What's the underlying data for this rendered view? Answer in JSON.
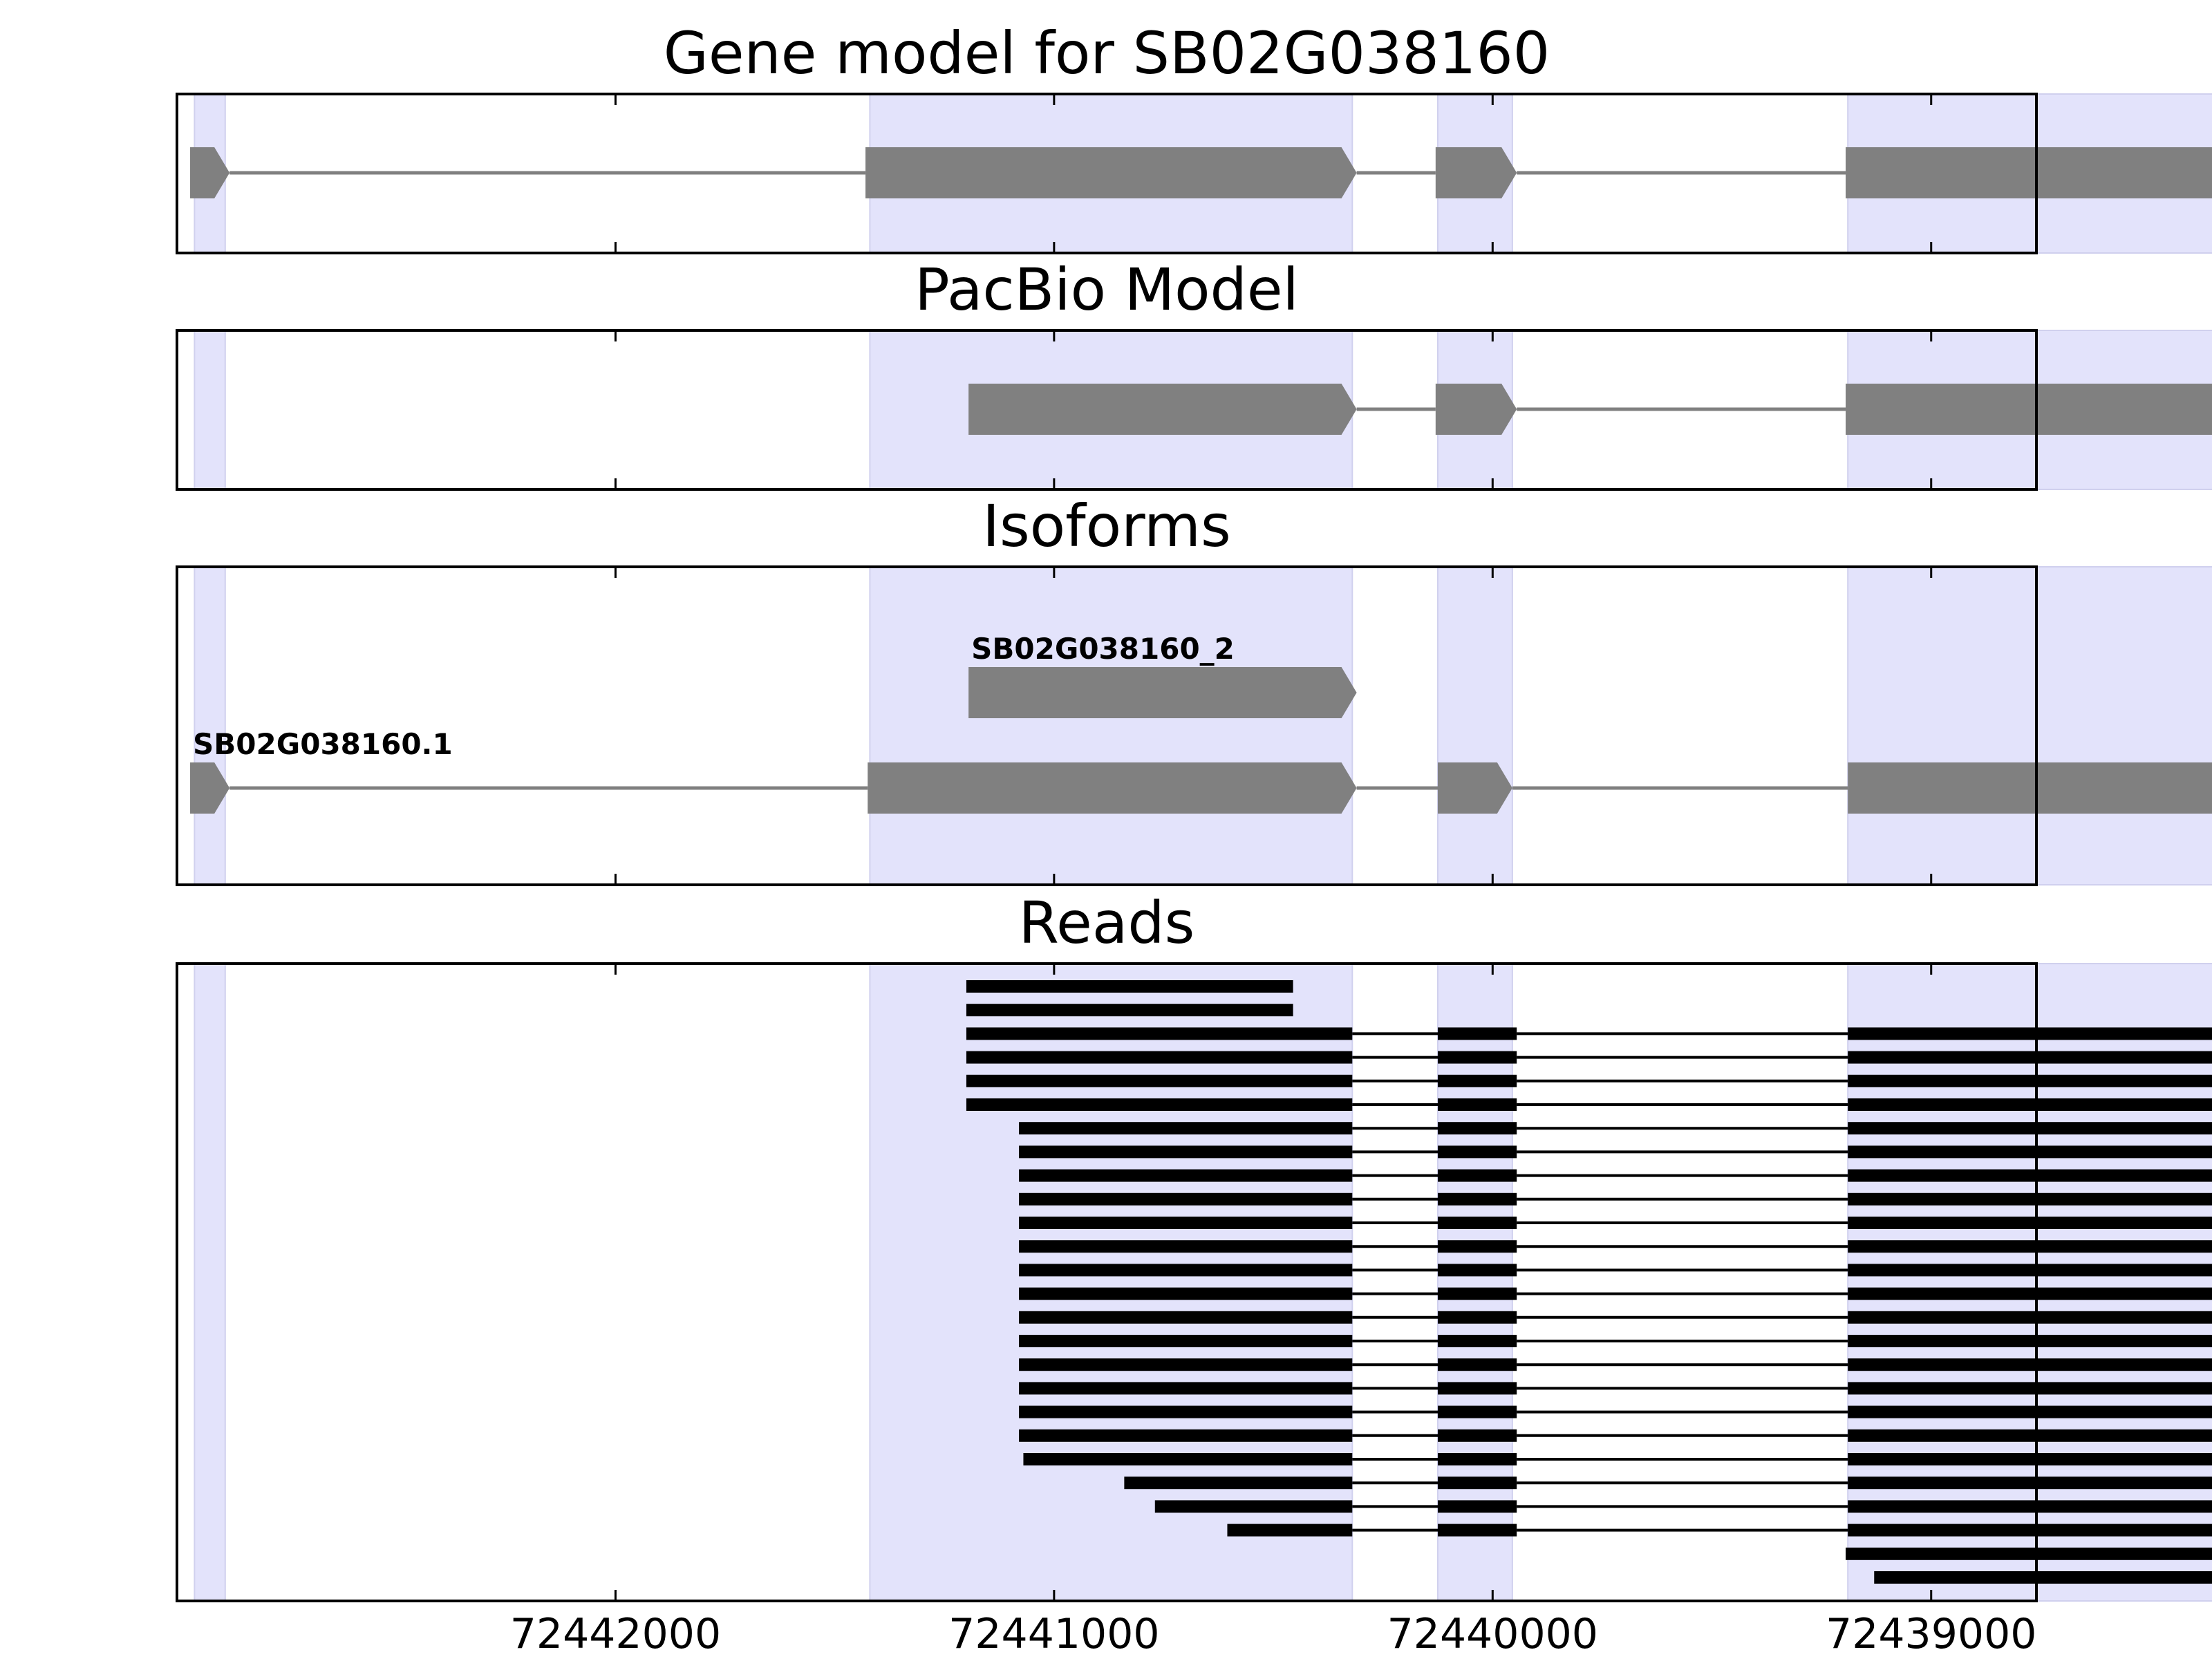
{
  "chart_data": {
    "type": "gene-structure",
    "xaxis": {
      "reversed": true,
      "xlim": [
        72443000,
        72438760
      ],
      "ticks": [
        72442000,
        72441000,
        72440000,
        72439000
      ],
      "tick_labels": [
        "72442000",
        "72441000",
        "72440000",
        "72439000"
      ]
    },
    "highlight_color": "#e3e3fb",
    "feature_color": "#808080",
    "read_color": "#000000",
    "exon_regions": [
      [
        72442960,
        72442890
      ],
      [
        72441420,
        72440320
      ],
      [
        72440125,
        72439955
      ],
      [
        72439190,
        72438320
      ]
    ],
    "panels": [
      {
        "title": "Gene model for SB02G038160",
        "kind": "gene",
        "tracks": [
          {
            "label": "",
            "exons": [
              [
                72442970,
                72442880
              ],
              [
                72441430,
                72440310
              ],
              [
                72440130,
                72439945
              ],
              [
                72439195,
                72438310
              ]
            ]
          }
        ]
      },
      {
        "title": "PacBio Model",
        "kind": "gene",
        "tracks": [
          {
            "label": "",
            "exons": [
              [
                72441195,
                72440310
              ],
              [
                72440130,
                72439945
              ],
              [
                72439195,
                72438240
              ]
            ]
          }
        ]
      },
      {
        "title": "Isoforms",
        "kind": "gene",
        "tracks": [
          {
            "label": "SB02G038160_2",
            "exons": [
              [
                72441195,
                72440310
              ]
            ]
          },
          {
            "label": "SB02G038160.1",
            "exons": [
              [
                72442970,
                72442880
              ],
              [
                72441425,
                72440310
              ],
              [
                72440125,
                72439955
              ],
              [
                72439190,
                72438240
              ]
            ]
          }
        ]
      },
      {
        "title": "Reads",
        "kind": "reads",
        "reads": [
          [
            [
              72441200,
              72440455
            ]
          ],
          [
            [
              72441200,
              72440455
            ]
          ],
          [
            [
              72441200,
              72440320
            ],
            [
              72440125,
              72439945
            ],
            [
              72439190,
              72438290
            ]
          ],
          [
            [
              72441200,
              72440320
            ],
            [
              72440125,
              72439945
            ],
            [
              72439190,
              72438290
            ]
          ],
          [
            [
              72441200,
              72440320
            ],
            [
              72440125,
              72439945
            ],
            [
              72439190,
              72438290
            ]
          ],
          [
            [
              72441200,
              72440320
            ],
            [
              72440125,
              72439945
            ],
            [
              72439190,
              72438280
            ]
          ],
          [
            [
              72441080,
              72440320
            ],
            [
              72440125,
              72439945
            ],
            [
              72439190,
              72438240
            ]
          ],
          [
            [
              72441080,
              72440320
            ],
            [
              72440125,
              72439945
            ],
            [
              72439190,
              72438240
            ]
          ],
          [
            [
              72441080,
              72440320
            ],
            [
              72440125,
              72439945
            ],
            [
              72439190,
              72438240
            ]
          ],
          [
            [
              72441080,
              72440320
            ],
            [
              72440125,
              72439945
            ],
            [
              72439190,
              72438240
            ]
          ],
          [
            [
              72441080,
              72440320
            ],
            [
              72440125,
              72439945
            ],
            [
              72439190,
              72438240
            ]
          ],
          [
            [
              72441080,
              72440320
            ],
            [
              72440125,
              72439945
            ],
            [
              72439190,
              72438240
            ]
          ],
          [
            [
              72441080,
              72440320
            ],
            [
              72440125,
              72439945
            ],
            [
              72439190,
              72438240
            ]
          ],
          [
            [
              72441080,
              72440320
            ],
            [
              72440125,
              72439945
            ],
            [
              72439190,
              72438240
            ]
          ],
          [
            [
              72441080,
              72440320
            ],
            [
              72440125,
              72439945
            ],
            [
              72439190,
              72438240
            ]
          ],
          [
            [
              72441080,
              72440320
            ],
            [
              72440125,
              72439945
            ],
            [
              72439190,
              72438240
            ]
          ],
          [
            [
              72441080,
              72440320
            ],
            [
              72440125,
              72439945
            ],
            [
              72439190,
              72438240
            ]
          ],
          [
            [
              72441080,
              72440320
            ],
            [
              72440125,
              72439945
            ],
            [
              72439190,
              72438240
            ]
          ],
          [
            [
              72441080,
              72440320
            ],
            [
              72440125,
              72439945
            ],
            [
              72439190,
              72438240
            ]
          ],
          [
            [
              72441080,
              72440320
            ],
            [
              72440125,
              72439945
            ],
            [
              72439190,
              72438240
            ]
          ],
          [
            [
              72441070,
              72440320
            ],
            [
              72440125,
              72439945
            ],
            [
              72439190,
              72438240
            ]
          ],
          [
            [
              72440840,
              72440320
            ],
            [
              72440125,
              72439945
            ],
            [
              72439190,
              72438240
            ]
          ],
          [
            [
              72440770,
              72440320
            ],
            [
              72440125,
              72439945
            ],
            [
              72439190,
              72438240
            ]
          ],
          [
            [
              72440605,
              72440320
            ],
            [
              72440125,
              72439945
            ],
            [
              72439190,
              72438295
            ]
          ],
          [
            [
              72439195,
              72438220
            ]
          ],
          [
            [
              72439130,
              72438310
            ]
          ]
        ]
      }
    ]
  }
}
